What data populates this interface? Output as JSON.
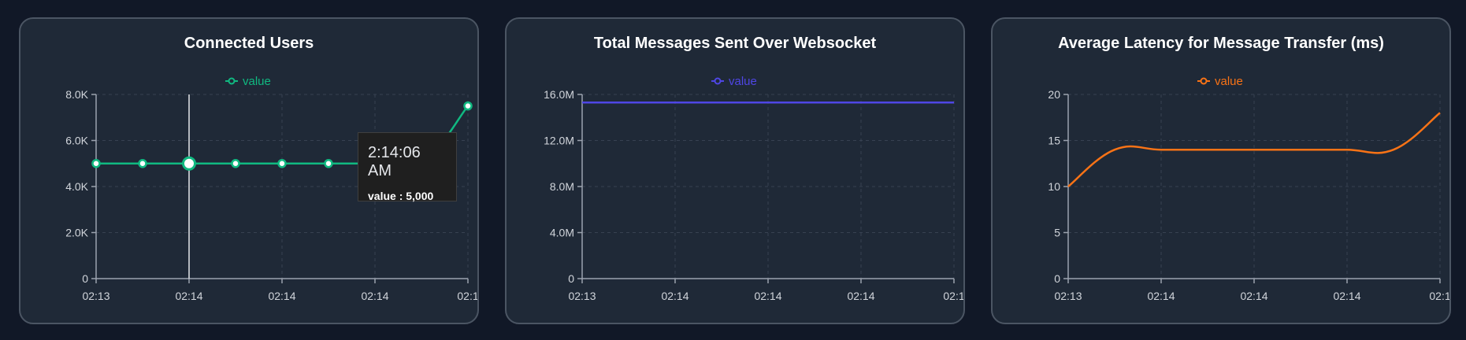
{
  "chart_data": [
    {
      "type": "line",
      "title": "Connected Users",
      "series": [
        {
          "name": "value",
          "color": "#10b981",
          "values": [
            5000,
            5000,
            5000,
            5000,
            5000,
            5000,
            5000,
            5000,
            7500
          ]
        }
      ],
      "x_ticks": [
        "02:13",
        "02:14",
        "02:14",
        "02:14",
        "02:1"
      ],
      "y_ticks": [
        "0",
        "2.0K",
        "4.0K",
        "6.0K",
        "8.0K"
      ],
      "ylim": [
        0,
        8000
      ],
      "markers": true,
      "tooltip": {
        "time": "2:14:06 AM",
        "label": "value : 5,000",
        "index": 2
      }
    },
    {
      "type": "line",
      "title": "Total Messages Sent Over Websocket",
      "series": [
        {
          "name": "value",
          "color": "#4f46e5",
          "values": [
            15300000,
            15300000,
            15300000,
            15300000,
            15300000,
            15300000,
            15300000,
            15300000,
            15300000
          ]
        }
      ],
      "x_ticks": [
        "02:13",
        "02:14",
        "02:14",
        "02:14",
        "02:1"
      ],
      "y_ticks": [
        "0",
        "4.0M",
        "8.0M",
        "12.0M",
        "16.0M"
      ],
      "ylim": [
        0,
        16000000
      ],
      "markers": false
    },
    {
      "type": "line",
      "title": "Average Latency for Message Transfer (ms)",
      "series": [
        {
          "name": "value",
          "color": "#f97316",
          "values": [
            10,
            14,
            14,
            14,
            14,
            14,
            14,
            14,
            18
          ]
        }
      ],
      "x_ticks": [
        "02:13",
        "02:14",
        "02:14",
        "02:14",
        "02:1"
      ],
      "y_ticks": [
        "0",
        "5",
        "10",
        "15",
        "20"
      ],
      "ylim": [
        0,
        20
      ],
      "markers": false
    }
  ]
}
